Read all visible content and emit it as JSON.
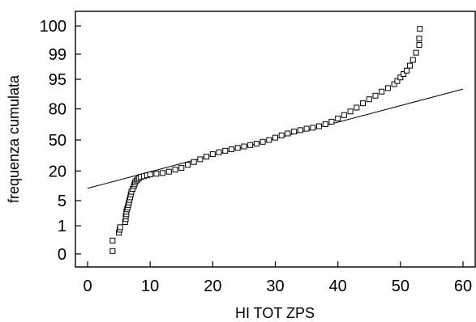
{
  "chart_data": {
    "type": "scatter",
    "title": "",
    "xlabel": "HI TOT ZPS",
    "ylabel": "frequenza cumulata",
    "y_scale": "normal-probability",
    "grid": false,
    "legend": "none",
    "xlim": [
      -3,
      61
    ],
    "x_ticks": [
      0,
      10,
      20,
      30,
      40,
      50,
      60
    ],
    "x_tick_labels": [
      "0",
      "10",
      "20",
      "30",
      "40",
      "50",
      "60"
    ],
    "y_ticks": [
      0.1,
      1,
      5,
      20,
      50,
      80,
      95,
      99,
      99.9
    ],
    "y_tick_labels": [
      "0",
      "1",
      "5",
      "20",
      "50",
      "80",
      "95",
      "99",
      "100"
    ],
    "reference_line": {
      "x": [
        0,
        60
      ],
      "y": [
        9.5,
        91.6
      ]
    },
    "marker": "open-square",
    "series": [
      {
        "x": [
          4.0,
          4.0,
          5.0,
          5.1,
          5.2,
          6.0,
          6.1,
          6.1,
          6.2,
          6.2,
          6.3,
          6.4,
          6.5,
          6.6,
          6.7,
          6.8,
          6.9,
          7.0,
          7.2,
          7.4,
          7.5,
          7.6,
          7.8,
          8.0,
          8.2,
          8.5,
          9.0,
          9.5,
          10.0,
          11.0,
          12.0,
          13.0,
          14.0,
          15.0,
          16.0,
          17.0,
          18.0,
          19.0,
          20.0,
          21.0,
          22.0,
          23.0,
          24.0,
          25.0,
          26.0,
          27.0,
          28.0,
          29.0,
          30.0,
          31.0,
          32.0,
          33.0,
          34.0,
          35.0,
          36.0,
          37.0,
          38.0,
          39.0,
          40.0,
          41.0,
          42.0,
          43.0,
          44.0,
          45.0,
          46.0,
          47.0,
          48.0,
          49.0,
          49.5,
          50.0,
          50.5,
          51.0,
          51.5,
          52.0,
          52.5,
          53.0,
          53.0,
          53.1
        ],
        "y": [
          0.13,
          0.32,
          0.6,
          0.75,
          0.9,
          1.3,
          1.6,
          1.9,
          2.2,
          2.6,
          3.0,
          3.4,
          3.9,
          4.5,
          5.2,
          6.0,
          7.0,
          8.0,
          9.2,
          10.5,
          11.5,
          12.5,
          13.5,
          14.2,
          15.0,
          15.8,
          16.3,
          16.9,
          17.5,
          18.0,
          18.5,
          19.5,
          21.0,
          22.5,
          25.0,
          27.5,
          30.0,
          32.5,
          35.0,
          37.0,
          38.5,
          40.0,
          41.5,
          43.0,
          44.5,
          46.0,
          48.0,
          50.0,
          52.5,
          55.0,
          57.0,
          59.0,
          60.5,
          62.0,
          63.0,
          64.5,
          66.5,
          69.0,
          72.0,
          75.0,
          78.0,
          81.0,
          84.0,
          86.5,
          88.5,
          90.5,
          92.0,
          93.5,
          94.5,
          95.5,
          96.3,
          97.0,
          97.8,
          98.5,
          99.1,
          99.5,
          99.7,
          99.87
        ]
      }
    ]
  }
}
